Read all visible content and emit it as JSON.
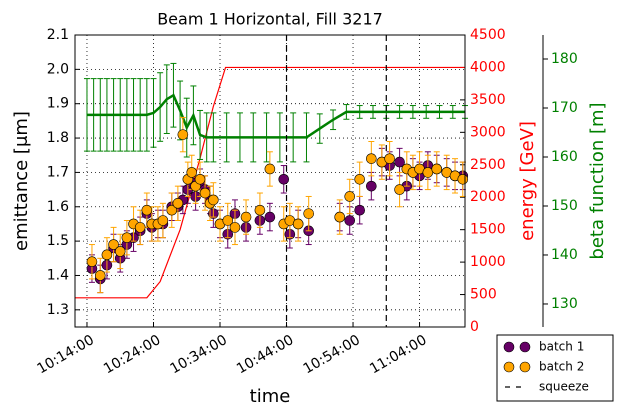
{
  "chart_data": {
    "type": "errorbar",
    "title": "Beam 1 Horizontal, Fill 3217",
    "xlabel": "time",
    "ylabel": "emittance [μm]",
    "y2label": "energy [GeV]",
    "y3label": "beta function [m]",
    "y2color": "#ff0000",
    "y3color": "#008000",
    "xlim": [
      "10:12:12",
      "11:10:50"
    ],
    "xticks": [
      "10:14:00",
      "10:24:00",
      "10:34:00",
      "10:44:00",
      "10:54:00",
      "11:04:00"
    ],
    "ylim": [
      1.25,
      2.1
    ],
    "yticks": [
      1.3,
      1.4,
      1.5,
      1.6,
      1.7,
      1.8,
      1.9,
      {
        "value": 2,
        "label": "2.0"
      },
      2.1
    ],
    "y2lim": [
      0,
      4500
    ],
    "y2ticks": [
      0,
      500,
      1000,
      1500,
      2000,
      2500,
      3000,
      3500,
      4000,
      4500
    ],
    "y3lim": [
      125.3,
      184.9
    ],
    "y3ticks": [
      130,
      140,
      150,
      160,
      170,
      180
    ],
    "grid": true,
    "legend": "lower right outside",
    "series": [
      {
        "name": "batch 1",
        "type": "errorbar",
        "color": "#660066",
        "error": 0.04,
        "x": [
          "10:14:45",
          "10:16:00",
          "10:17:00",
          "10:18:00",
          "10:19:00",
          "10:20:00",
          "10:21:00",
          "10:22:00",
          "10:23:00",
          "10:23:45",
          "10:24:40",
          "10:25:25",
          "10:26:45",
          "10:27:40",
          "10:28:25",
          "10:29:10",
          "10:29:45",
          "10:30:20",
          "10:31:00",
          "10:31:45",
          "10:32:30",
          "10:33:00",
          "10:34:00",
          "10:35:10",
          "10:36:15",
          "10:37:55",
          "10:40:00",
          "10:41:30",
          "10:43:35",
          "10:44:30",
          "10:45:45",
          "10:47:20",
          "10:52:00",
          "10:53:30",
          "10:55:00",
          "10:56:45",
          "10:58:20",
          "10:59:30",
          "11:01:00",
          "11:02:05",
          "11:03:00",
          "11:04:00",
          "11:05:15",
          "11:06:35",
          "11:08:05",
          "11:09:20",
          "11:10:30"
        ],
        "values": [
          1.42,
          1.39,
          1.43,
          1.48,
          1.45,
          1.49,
          1.51,
          1.53,
          1.58,
          1.54,
          1.55,
          1.55,
          1.6,
          1.6,
          1.62,
          1.65,
          1.67,
          1.63,
          1.67,
          1.65,
          1.62,
          1.58,
          1.55,
          1.52,
          1.58,
          1.54,
          1.56,
          1.57,
          1.68,
          1.52,
          1.55,
          1.53,
          1.57,
          1.56,
          1.59,
          1.66,
          1.73,
          1.72,
          1.73,
          1.66,
          1.7,
          1.69,
          1.72,
          1.71,
          1.7,
          1.69,
          1.69
        ]
      },
      {
        "name": "batch 2",
        "type": "errorbar",
        "color": "#ffa500",
        "error": 0.05,
        "x": [
          "10:14:45",
          "10:16:00",
          "10:17:00",
          "10:18:00",
          "10:19:00",
          "10:20:00",
          "10:21:00",
          "10:22:00",
          "10:23:00",
          "10:23:45",
          "10:24:40",
          "10:25:25",
          "10:26:45",
          "10:27:40",
          "10:28:25",
          "10:29:10",
          "10:29:45",
          "10:30:20",
          "10:31:00",
          "10:31:45",
          "10:32:30",
          "10:33:00",
          "10:34:00",
          "10:35:10",
          "10:36:15",
          "10:37:55",
          "10:40:00",
          "10:41:30",
          "10:43:35",
          "10:44:30",
          "10:45:45",
          "10:47:20",
          "10:52:00",
          "10:53:30",
          "10:55:00",
          "10:56:45",
          "10:58:20",
          "10:59:30",
          "11:01:00",
          "11:02:05",
          "11:03:00",
          "11:04:00",
          "11:05:15",
          "11:06:35",
          "11:08:05",
          "11:09:20",
          "11:10:30"
        ],
        "values": [
          1.44,
          1.4,
          1.46,
          1.49,
          1.47,
          1.51,
          1.55,
          1.54,
          1.59,
          1.55,
          1.55,
          1.56,
          1.59,
          1.61,
          1.81,
          1.68,
          1.7,
          1.66,
          1.68,
          1.64,
          1.61,
          1.62,
          1.55,
          1.56,
          1.54,
          1.57,
          1.59,
          1.71,
          1.55,
          1.56,
          1.55,
          1.58,
          1.57,
          1.63,
          1.68,
          1.74,
          1.73,
          1.74,
          1.65,
          1.71,
          1.7,
          1.71,
          1.7,
          1.71,
          1.7,
          1.69,
          1.68
        ]
      },
      {
        "type": "line",
        "axis": "y2",
        "color": "#ff0000",
        "x": [
          "10:12:12",
          "10:23:00",
          "10:25:00",
          "10:28:00",
          "10:31:00",
          "10:33:00",
          "10:34:50",
          "11:10:50"
        ],
        "values": [
          450,
          450,
          700,
          1500,
          2600,
          3400,
          4000,
          4000
        ]
      },
      {
        "type": "errorline",
        "axis": "y3",
        "color": "#008000",
        "x": [
          "10:14:00",
          "10:15:00",
          "10:16:00",
          "10:17:00",
          "10:18:00",
          "10:19:00",
          "10:20:00",
          "10:21:00",
          "10:22:00",
          "10:23:00",
          "10:24:00",
          "10:25:00",
          "10:26:00",
          "10:27:00",
          "10:28:00",
          "10:29:00",
          "10:30:00",
          "10:31:00",
          "10:32:00",
          "10:33:00",
          "10:35:00",
          "10:37:00",
          "10:39:00",
          "10:41:00",
          "10:43:00",
          "10:45:00",
          "10:47:00",
          "10:49:00",
          "10:51:00",
          "10:53:00",
          "10:55:00",
          "10:57:00",
          "10:59:00",
          "11:01:00",
          "11:03:00",
          "11:05:00",
          "11:07:00",
          "11:09:00",
          "11:10:50"
        ],
        "values": [
          168.6,
          168.6,
          168.6,
          168.6,
          168.6,
          168.6,
          168.6,
          168.6,
          168.6,
          168.6,
          169.0,
          170.2,
          171.8,
          172.6,
          169.5,
          166.0,
          168.5,
          164.5,
          164.0,
          164.0,
          164.0,
          164.0,
          164.0,
          164.0,
          164.0,
          164.0,
          164.0,
          165.8,
          167.6,
          169.2,
          169.2,
          169.2,
          169.2,
          169.2,
          169.2,
          169.2,
          169.2,
          169.2,
          169.2
        ],
        "errors": [
          7.4,
          7.4,
          7.4,
          7.4,
          7.4,
          7.4,
          7.4,
          7.4,
          7.4,
          7.4,
          7,
          7,
          7,
          6.5,
          6,
          6,
          6,
          5,
          5,
          5,
          5,
          5,
          5,
          5,
          5,
          5,
          5,
          3,
          2,
          1.5,
          1.3,
          1.3,
          1.3,
          1.3,
          1.3,
          1.3,
          1.3,
          1.3,
          1.3
        ]
      },
      {
        "name": "squeeze",
        "type": "vline",
        "color": "#000000",
        "x": [
          "10:44:00",
          "10:59:00"
        ]
      }
    ]
  }
}
